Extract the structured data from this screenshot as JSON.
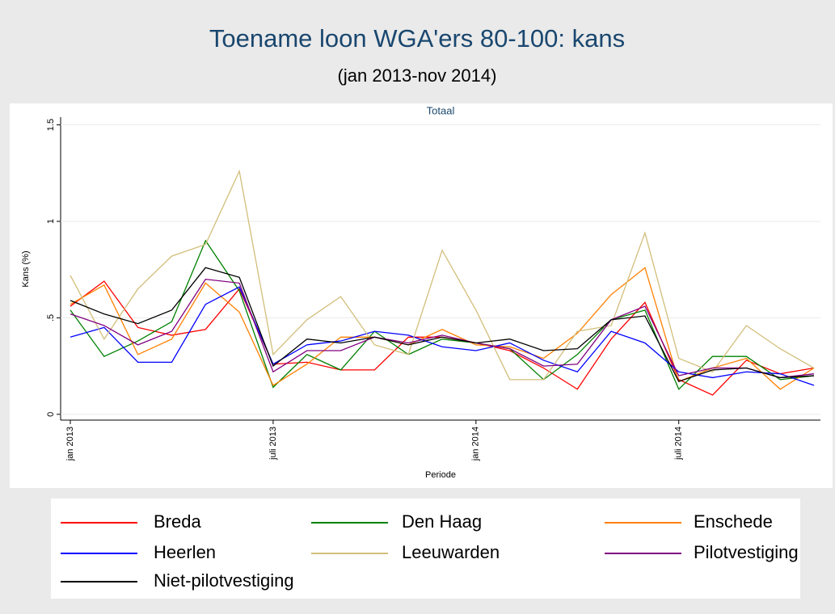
{
  "chart_data": {
    "type": "line",
    "title": "Toename loon WGA'ers 80-100: kans",
    "subtitle": "(jan 2013-nov 2014)",
    "panel_title": "Totaal",
    "xlabel": "Periode",
    "ylabel": "Kans (%)",
    "categories": [
      "jan 2013",
      null,
      null,
      null,
      null,
      null,
      "juli 2013",
      null,
      null,
      null,
      null,
      null,
      "jan 2014",
      null,
      null,
      null,
      null,
      null,
      "juli 2014",
      null,
      null,
      null,
      null
    ],
    "ylim": [
      -0.03,
      1.54
    ],
    "yticks": [
      0,
      {
        "value": 0.5,
        "label": ".5"
      },
      1,
      1.5
    ],
    "grid": true,
    "legend": "bottom",
    "series": [
      {
        "name": "Breda",
        "color": "#ff0000",
        "values": [
          0.56,
          0.69,
          0.45,
          0.41,
          0.44,
          0.65,
          0.26,
          0.27,
          0.23,
          0.23,
          0.4,
          0.4,
          0.37,
          0.33,
          0.24,
          0.13,
          0.39,
          0.58,
          0.18,
          0.1,
          0.28,
          0.21,
          0.24
        ]
      },
      {
        "name": "Den Haag",
        "color": "#008000",
        "values": [
          0.54,
          0.3,
          0.38,
          0.48,
          0.9,
          0.64,
          0.14,
          0.31,
          0.23,
          0.43,
          0.31,
          0.39,
          0.37,
          0.34,
          0.18,
          0.31,
          0.49,
          0.54,
          0.13,
          0.3,
          0.3,
          0.18,
          0.2
        ]
      },
      {
        "name": "Enschede",
        "color": "#ff8000",
        "values": [
          0.57,
          0.67,
          0.31,
          0.39,
          0.68,
          0.53,
          0.15,
          0.26,
          0.4,
          0.4,
          0.36,
          0.44,
          0.36,
          0.35,
          0.29,
          0.42,
          0.62,
          0.76,
          0.17,
          0.24,
          0.29,
          0.13,
          0.24
        ]
      },
      {
        "name": "Heerlen",
        "color": "#0000ff",
        "values": [
          0.4,
          0.45,
          0.27,
          0.27,
          0.57,
          0.66,
          0.26,
          0.36,
          0.38,
          0.43,
          0.41,
          0.35,
          0.33,
          0.37,
          0.28,
          0.22,
          0.43,
          0.37,
          0.22,
          0.19,
          0.22,
          0.21,
          0.15
        ]
      },
      {
        "name": "Leeuwarden",
        "color": "#d2be7a",
        "values": [
          0.72,
          0.39,
          0.65,
          0.82,
          0.88,
          1.26,
          0.31,
          0.49,
          0.61,
          0.36,
          0.31,
          0.85,
          0.54,
          0.18,
          0.18,
          0.43,
          0.46,
          0.94,
          0.29,
          0.22,
          0.46,
          0.34,
          0.24
        ]
      },
      {
        "name": "Pilotvestiging",
        "color": "#800080",
        "values": [
          0.52,
          0.46,
          0.36,
          0.43,
          0.7,
          0.68,
          0.22,
          0.33,
          0.33,
          0.4,
          0.37,
          0.41,
          0.37,
          0.34,
          0.25,
          0.26,
          0.49,
          0.56,
          0.2,
          0.24,
          0.24,
          0.19,
          0.21
        ]
      },
      {
        "name": "Niet-pilotvestiging",
        "color": "#000000",
        "values": [
          0.59,
          0.52,
          0.47,
          0.54,
          0.76,
          0.71,
          0.25,
          0.39,
          0.37,
          0.4,
          0.36,
          0.4,
          0.37,
          0.39,
          0.33,
          0.34,
          0.49,
          0.51,
          0.17,
          0.23,
          0.24,
          0.19,
          0.2
        ]
      }
    ]
  }
}
